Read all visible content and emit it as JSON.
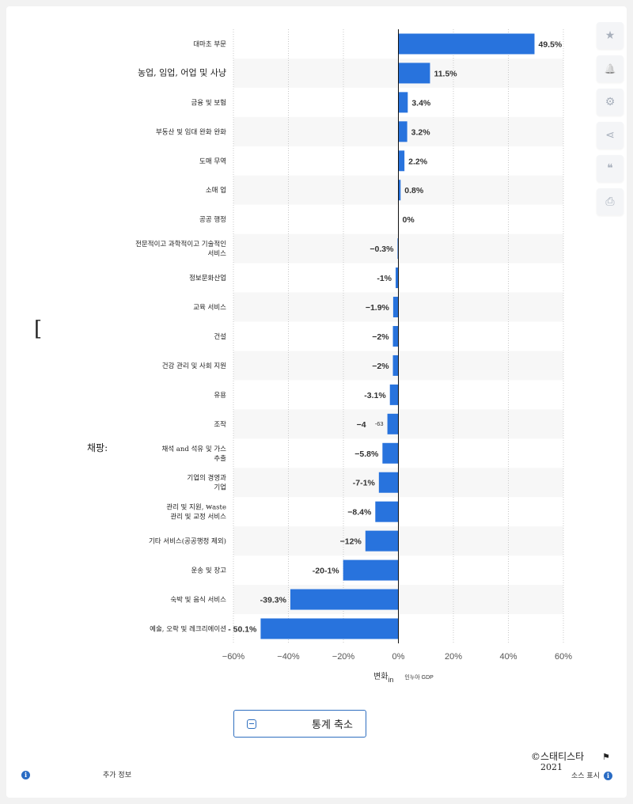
{
  "colors": {
    "bar": "#2873dd",
    "stripe": "#f7f7f7",
    "grid": "#c8c8c8",
    "axis": "#111111"
  },
  "chart_data": {
    "type": "bar",
    "orientation": "horizontal",
    "categories": [
      [
        "대마초 부문"
      ],
      [
        "농업, 임업, 어업 및 사냥"
      ],
      [
        "금융 및 보험"
      ],
      [
        "부동산 및 임대 완화 완화"
      ],
      [
        "도매 무역"
      ],
      [
        "소매 업"
      ],
      [
        "공공 행정"
      ],
      [
        "전문적이고 과학적이고 기술적인",
        "서비스"
      ],
      [
        "정보문화산업"
      ],
      [
        "교육 서비스"
      ],
      [
        "건설"
      ],
      [
        "건강 관리 및 사회 지원"
      ],
      [
        "유용"
      ],
      [
        "조작"
      ],
      [
        "채석 and 석유 및 가스",
        "추출"
      ],
      [
        "기업의 경영과",
        "기업"
      ],
      [
        "관리 및 지원, ₩aste",
        "관리 및 교정 서비스"
      ],
      [
        "기타 서비스(공공행정 제외)"
      ],
      [
        "운송 및 창고"
      ],
      [
        "숙박 및 음식 서비스"
      ],
      [
        "예술, 오락 및 레크리에이션"
      ]
    ],
    "values": [
      49.5,
      11.5,
      3.4,
      3.2,
      2.2,
      0.8,
      0,
      -0.3,
      -1,
      -1.9,
      -2,
      -2,
      -3.1,
      -4,
      -5.8,
      -7.1,
      -8.4,
      -12,
      -20.1,
      -39.3,
      -50.1
    ],
    "data_labels": [
      "49.5%",
      "11.5%",
      "3.4%",
      "3.2%",
      "2.2%",
      "0.8%",
      "0%",
      "−0.3%",
      "-1%",
      "−1.9%",
      "−2%",
      "−2%",
      "-3.1%",
      "−4",
      "−5.8%",
      "-7-1%",
      "−8.4%",
      "−12%",
      "-20-1%",
      "-39.3%",
      "- 50.1%"
    ],
    "extra_annotation": "-63",
    "xlim": [
      -60,
      60
    ],
    "xticks": [
      -60,
      -40,
      -20,
      0,
      20,
      40,
      60
    ],
    "xtick_labels": [
      "−60%",
      "−40%",
      "−20%",
      "0%",
      "20%",
      "40%",
      "60%"
    ],
    "grid": true
  },
  "ui": {
    "side_bracket": "[",
    "side_label": "채팡:",
    "axis_title": {
      "main": "변화",
      "sub": "in",
      "extra": "인누아 GDP"
    },
    "collapse_label": "통계 축소",
    "more_info": "추가 정보",
    "copyright": "©스태티스타",
    "year": "2021",
    "source": "소스 표시",
    "info_glyph": "i",
    "tools": [
      {
        "name": "star-icon",
        "glyph": "★"
      },
      {
        "name": "bell-icon",
        "glyph": "🔔"
      },
      {
        "name": "gear-icon",
        "glyph": "⚙"
      },
      {
        "name": "share-icon",
        "glyph": "⋖"
      },
      {
        "name": "quote-icon",
        "glyph": "❝"
      },
      {
        "name": "print-icon",
        "glyph": "⎙"
      }
    ],
    "flag_glyph": "⚑"
  }
}
